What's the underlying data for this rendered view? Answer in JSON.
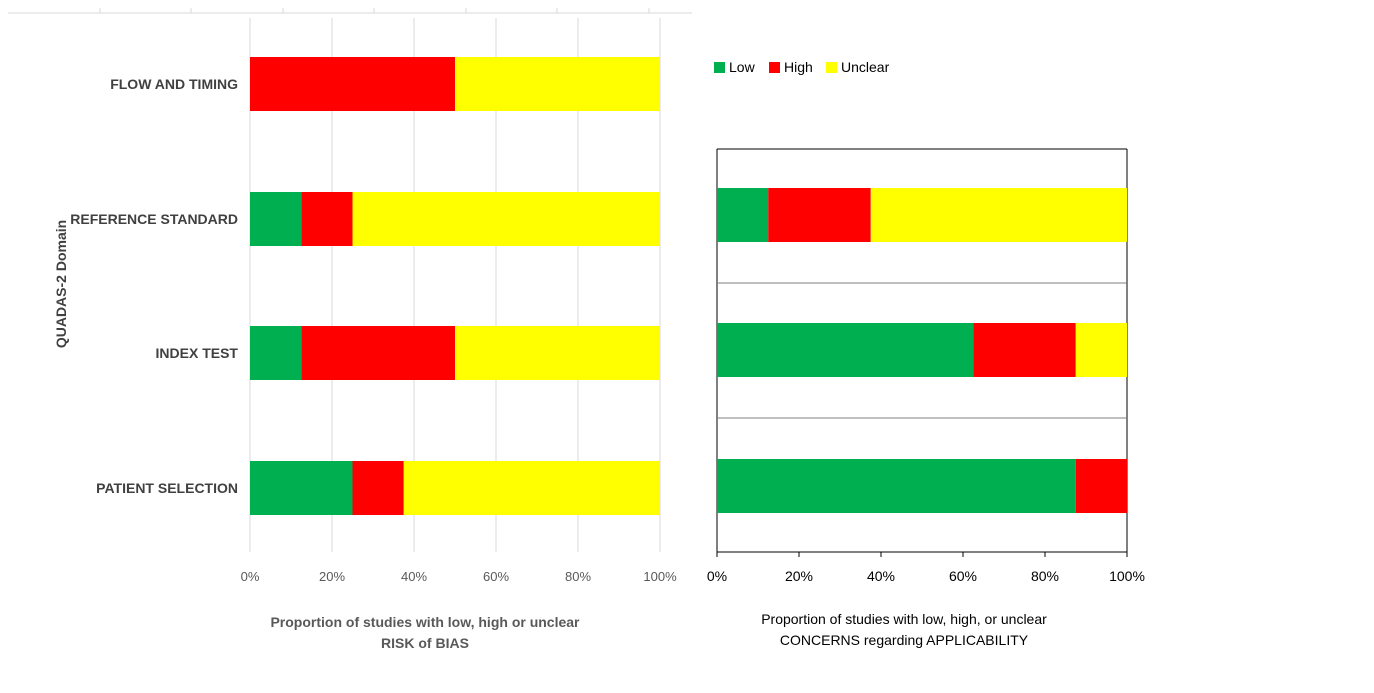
{
  "colors": {
    "low": "#00B050",
    "high": "#FF0000",
    "unclear": "#FFFF00",
    "gridline": "#D9D9D9",
    "axis_text": "#595959",
    "label_text": "#404040"
  },
  "chart_data": [
    {
      "type": "bar",
      "orientation": "horizontal",
      "stacked": true,
      "percent": true,
      "categories": [
        "FLOW AND TIMING",
        "REFERENCE STANDARD",
        "INDEX TEST",
        "PATIENT SELECTION"
      ],
      "series": [
        {
          "name": "Low",
          "values": [
            0,
            12.5,
            12.5,
            25
          ]
        },
        {
          "name": "High",
          "values": [
            50,
            12.5,
            37.5,
            12.5
          ]
        },
        {
          "name": "Unclear",
          "values": [
            50,
            75,
            50,
            62.5
          ]
        }
      ],
      "xlim": [
        0,
        100
      ],
      "xticks": [
        "0%",
        "20%",
        "40%",
        "60%",
        "80%",
        "100%"
      ],
      "ylabel": "QUADAS-2 Domain",
      "xlabel": [
        "Proportion of studies with low, high or unclear",
        "RISK of BIAS"
      ],
      "grid": true
    },
    {
      "type": "bar",
      "orientation": "horizontal",
      "stacked": true,
      "percent": true,
      "categories": [
        "REFERENCE STANDARD",
        "INDEX TEST",
        "PATIENT SELECTION"
      ],
      "series": [
        {
          "name": "Low",
          "values": [
            12.5,
            62.5,
            87.5
          ]
        },
        {
          "name": "High",
          "values": [
            25,
            25,
            12.5
          ]
        },
        {
          "name": "Unclear",
          "values": [
            62.5,
            12.5,
            0
          ]
        }
      ],
      "xlim": [
        0,
        100
      ],
      "xticks": [
        "0%",
        "20%",
        "40%",
        "60%",
        "80%",
        "100%"
      ],
      "xlabel": [
        "Proportion of studies with low, high, or unclear",
        "CONCERNS regarding APPLICABILITY"
      ],
      "legend": {
        "position": "top-left",
        "entries": [
          "Low",
          "High",
          "Unclear"
        ]
      }
    }
  ]
}
